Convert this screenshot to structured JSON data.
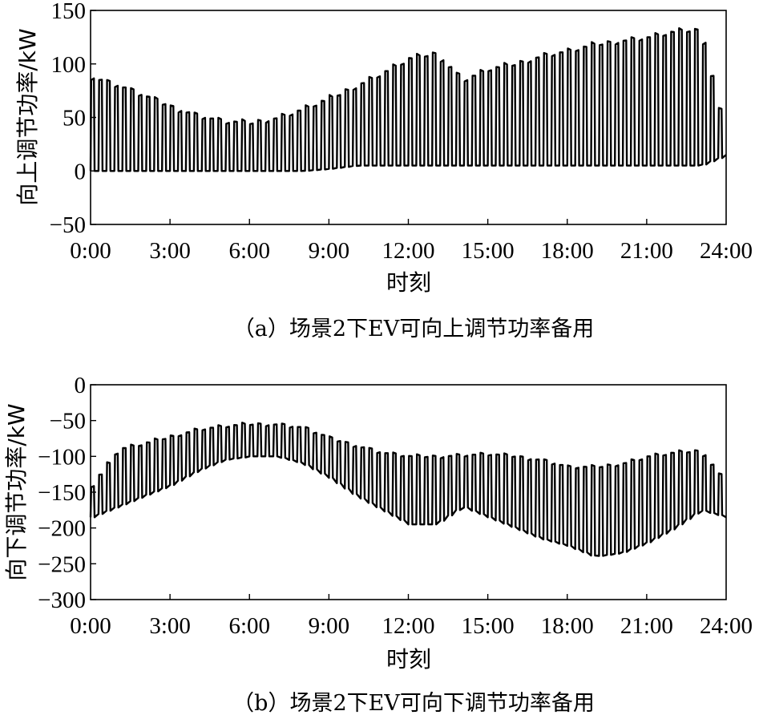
{
  "chart_data": [
    {
      "type": "line",
      "caption": "（a）场景2下EV可向上调节功率备用",
      "xlabel": "时刻",
      "ylabel": "向上调节功率/kW",
      "ylim": [
        -50,
        150
      ],
      "yticks": [
        -50,
        0,
        50,
        100,
        150
      ],
      "xlim": [
        0,
        24
      ],
      "xtick_labels": [
        "0:00",
        "3:00",
        "6:00",
        "9:00",
        "12:00",
        "15:00",
        "18:00",
        "21:00",
        "24:00"
      ],
      "grid": false,
      "legend": "none",
      "period_hours": 0.3,
      "series": [
        {
          "x": [
            0,
            1,
            2,
            3,
            4,
            5,
            6,
            7,
            8,
            9,
            10,
            11,
            12,
            13,
            14,
            15,
            16,
            17,
            18,
            19,
            20,
            21,
            22,
            23,
            24
          ],
          "high": [
            88,
            80,
            70,
            60,
            52,
            46,
            45,
            50,
            58,
            68,
            80,
            92,
            105,
            110,
            85,
            95,
            100,
            108,
            112,
            118,
            122,
            125,
            130,
            132,
            25
          ],
          "low": [
            0,
            0,
            0,
            0,
            0,
            0,
            0,
            0,
            0,
            2,
            5,
            5,
            5,
            5,
            5,
            5,
            5,
            5,
            5,
            5,
            5,
            5,
            5,
            5,
            15
          ]
        }
      ]
    },
    {
      "type": "line",
      "caption": "（b）场景2下EV可向下调节功率备用",
      "xlabel": "时刻",
      "ylabel": "向下调节功率/kW",
      "ylim": [
        -300,
        0
      ],
      "yticks": [
        -300,
        -250,
        -200,
        -150,
        -100,
        -50,
        0
      ],
      "xlim": [
        0,
        24
      ],
      "xtick_labels": [
        "0:00",
        "3:00",
        "6:00",
        "9:00",
        "12:00",
        "15:00",
        "18:00",
        "21:00",
        "24:00"
      ],
      "grid": false,
      "legend": "none",
      "period_hours": 0.3,
      "series": [
        {
          "x": [
            0,
            1,
            2,
            3,
            4,
            5,
            6,
            7,
            8,
            9,
            10,
            11,
            12,
            13,
            14,
            15,
            16,
            17,
            18,
            19,
            20,
            21,
            22,
            23,
            24
          ],
          "high": [
            -140,
            -90,
            -82,
            -72,
            -62,
            -58,
            -55,
            -55,
            -60,
            -75,
            -85,
            -95,
            -100,
            -100,
            -98,
            -97,
            -100,
            -105,
            -115,
            -115,
            -110,
            -100,
            -95,
            -92,
            -140
          ],
          "low": [
            -185,
            -170,
            -155,
            -140,
            -120,
            -105,
            -100,
            -100,
            -110,
            -130,
            -155,
            -175,
            -195,
            -195,
            -170,
            -185,
            -200,
            -215,
            -225,
            -240,
            -235,
            -220,
            -200,
            -175,
            -185
          ]
        }
      ]
    }
  ]
}
